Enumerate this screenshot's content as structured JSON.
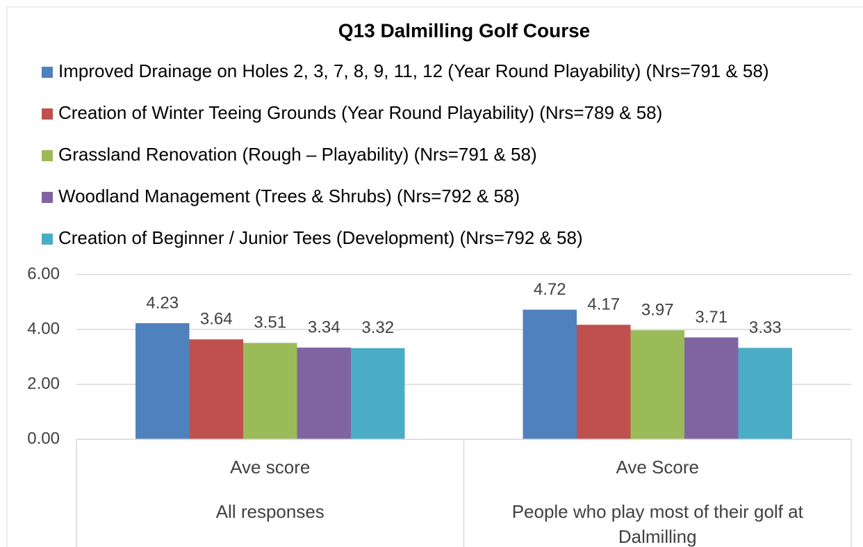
{
  "chart_data": {
    "type": "bar",
    "title": "Q13 Dalmilling Golf Course",
    "categories": [
      "Ave score",
      "Ave Score"
    ],
    "category_groups": [
      "All responses",
      "People who play most of their golf at Dalmilling"
    ],
    "series": [
      {
        "name": "Improved Drainage on Holes 2, 3, 7, 8, 9, 11, 12 (Year Round Playability) (Nrs=791 & 58)",
        "color": "#4f81bd",
        "values": [
          4.23,
          4.72
        ]
      },
      {
        "name": "Creation of Winter Teeing Grounds (Year Round Playability) (Nrs=789 & 58)",
        "color": "#c0504d",
        "values": [
          3.64,
          4.17
        ]
      },
      {
        "name": "Grassland Renovation (Rough – Playability) (Nrs=791 & 58)",
        "color": "#9bbb59",
        "values": [
          3.51,
          3.97
        ]
      },
      {
        "name": "Woodland Management (Trees & Shrubs) (Nrs=792 & 58)",
        "color": "#8064a2",
        "values": [
          3.34,
          3.71
        ]
      },
      {
        "name": "Creation of Beginner / Junior Tees (Development) (Nrs=792 & 58)",
        "color": "#4bacc6",
        "values": [
          3.32,
          3.33
        ]
      }
    ],
    "ylim": [
      0,
      6
    ],
    "yticks": [
      {
        "value": 0,
        "label": "0.00"
      },
      {
        "value": 2,
        "label": "2.00"
      },
      {
        "value": 4,
        "label": "4.00"
      },
      {
        "value": 6,
        "label": "6.00"
      }
    ],
    "grid": true,
    "legend": "top"
  }
}
